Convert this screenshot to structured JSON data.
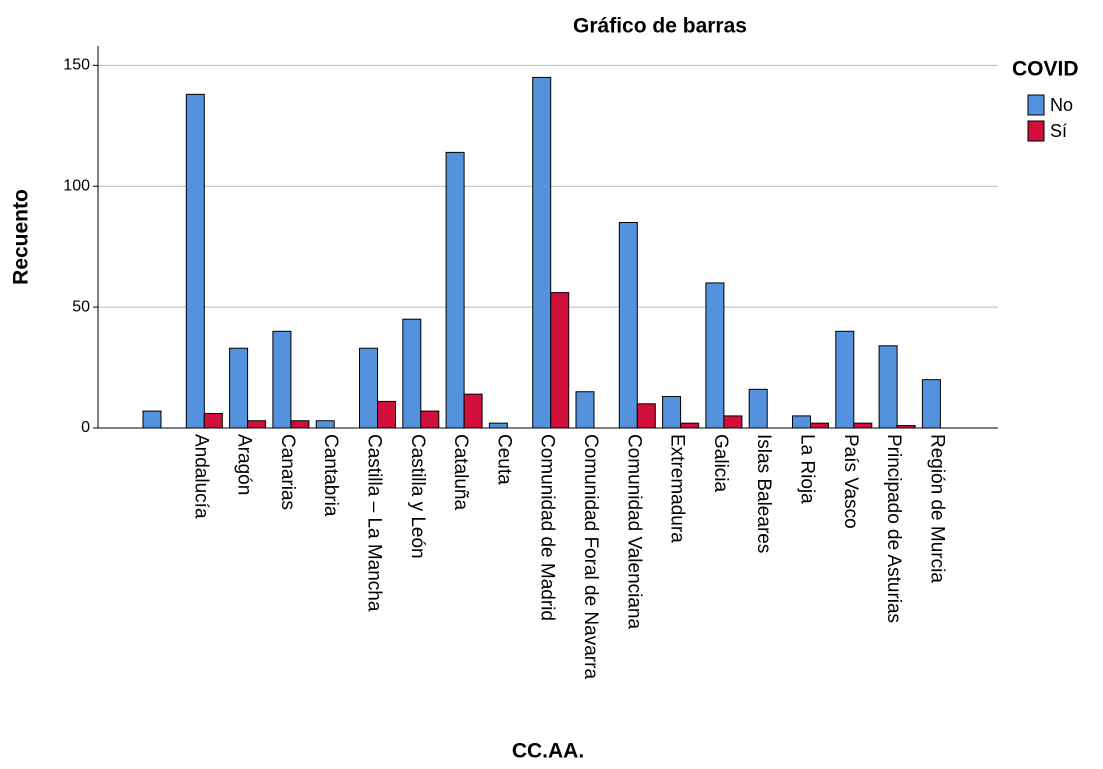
{
  "chart_data": {
    "type": "bar",
    "title": "Gráfico de barras",
    "x_label": "CC.AA.",
    "y_label": "Recuento",
    "legend_title": "COVID",
    "legend": "right",
    "grid": true,
    "categories": [
      null,
      "Andalucía",
      "Aragón",
      "Canarias",
      "Cantabria",
      "Castilla – La Mancha",
      "Castilla y León",
      "Cataluña",
      "Ceuta",
      "Comunidad de Madrid",
      "Comunidad Foral de Navarra",
      "Comunidad Valenciana",
      "Extremadura",
      "Galicia",
      "Islas Baleares",
      "La Rioja",
      "País Vasco",
      "Principado de Asturias",
      "Región de Murcia"
    ],
    "series": [
      {
        "name": "No",
        "color": "#5592dd",
        "values": [
          7,
          138,
          33,
          40,
          3,
          33,
          45,
          114,
          2,
          145,
          15,
          85,
          13,
          60,
          16,
          5,
          40,
          34,
          20
        ]
      },
      {
        "name": "Sí",
        "color": "#d0103a",
        "values": [
          null,
          6,
          3,
          3,
          null,
          11,
          7,
          14,
          null,
          56,
          null,
          10,
          2,
          5,
          null,
          2,
          2,
          1,
          null
        ]
      }
    ],
    "ylim": [
      0,
      158
    ],
    "yticks": [
      0,
      50,
      100,
      150
    ]
  }
}
